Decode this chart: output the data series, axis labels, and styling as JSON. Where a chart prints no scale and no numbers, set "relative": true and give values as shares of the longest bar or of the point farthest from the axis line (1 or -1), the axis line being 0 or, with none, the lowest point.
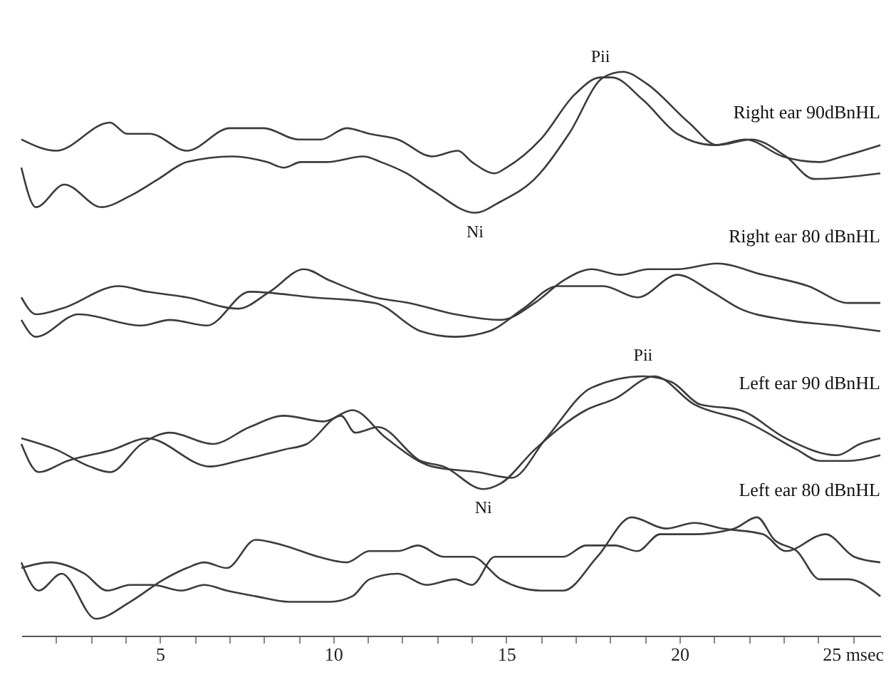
{
  "chart_data": {
    "type": "line",
    "relative": true,
    "grid": false,
    "marker": "none",
    "line_style": "solid",
    "xlim": [
      1,
      25.8
    ],
    "xticks": [
      {
        "value": 2,
        "label": null
      },
      {
        "value": 3,
        "label": null
      },
      {
        "value": 4,
        "label": null
      },
      5,
      {
        "value": 6,
        "label": null
      },
      {
        "value": 7,
        "label": null
      },
      {
        "value": 8,
        "label": null
      },
      {
        "value": 9,
        "label": null
      },
      10,
      {
        "value": 11,
        "label": null
      },
      {
        "value": 12,
        "label": null
      },
      {
        "value": 13,
        "label": null
      },
      {
        "value": 14,
        "label": null
      },
      15,
      {
        "value": 16,
        "label": null
      },
      {
        "value": 17,
        "label": null
      },
      {
        "value": 18,
        "label": null
      },
      {
        "value": 19,
        "label": null
      },
      20,
      {
        "value": 21,
        "label": null
      },
      {
        "value": 22,
        "label": null
      },
      {
        "value": 23,
        "label": null
      },
      {
        "value": 24,
        "label": null
      },
      {
        "value": 25,
        "label": "25 msec"
      }
    ],
    "series": [
      {
        "name": "Right ear 90dBnHL",
        "color": "#3c3c3c",
        "x": [
          1.0,
          2.0,
          3.56,
          4.05,
          4.71,
          5.78,
          7.02,
          7.43,
          8.0,
          8.99,
          9.65,
          10.39,
          11.05,
          11.87,
          12.86,
          13.6,
          14.01,
          14.67,
          15.0,
          15.99,
          16.98,
          17.72,
          18.05,
          18.95,
          19.94,
          21.01,
          21.91,
          22.98,
          24.05,
          24.71,
          25.8
        ],
        "values": [
          0.88,
          0.86,
          0.91,
          0.89,
          0.89,
          0.86,
          0.9,
          0.9,
          0.9,
          0.88,
          0.88,
          0.9,
          0.89,
          0.88,
          0.85,
          0.86,
          0.84,
          0.82,
          0.83,
          0.88,
          0.96,
          0.99,
          0.99,
          0.95,
          0.89,
          0.87,
          0.88,
          0.85,
          0.84,
          0.85,
          0.87
        ]
      },
      {
        "color": "#3c3c3c",
        "x": [
          1.0,
          1.42,
          2.24,
          3.31,
          4.14,
          4.96,
          5.78,
          7.1,
          8.09,
          8.58,
          9.07,
          9.81,
          10.88,
          11.38,
          12.12,
          12.86,
          14.1,
          14.84,
          15.82,
          16.81,
          17.8,
          18.37,
          19.03,
          20.27,
          21.09,
          22.08,
          23.07,
          23.89,
          25.8
        ],
        "values": [
          0.83,
          0.76,
          0.8,
          0.76,
          0.78,
          0.81,
          0.84,
          0.85,
          0.84,
          0.83,
          0.84,
          0.84,
          0.85,
          0.84,
          0.82,
          0.79,
          0.75,
          0.77,
          0.81,
          0.89,
          0.99,
          1.0,
          0.98,
          0.91,
          0.87,
          0.88,
          0.85,
          0.81,
          0.82
        ]
      },
      {
        "name": "Right ear 80 dBnHL",
        "color": "#3c3c3c",
        "x": [
          1.0,
          1.42,
          2.16,
          3.81,
          4.63,
          5.78,
          7.26,
          8.17,
          9.16,
          9.9,
          11.21,
          12.2,
          13.52,
          14.84,
          15.82,
          16.65,
          17.47,
          18.29,
          19.11,
          19.94,
          21.09,
          22.41,
          23.72,
          24.88,
          25.8
        ],
        "values": [
          0.6,
          0.57,
          0.58,
          0.62,
          0.61,
          0.6,
          0.58,
          0.61,
          0.65,
          0.63,
          0.6,
          0.59,
          0.57,
          0.56,
          0.59,
          0.63,
          0.65,
          0.64,
          0.65,
          0.65,
          0.66,
          0.64,
          0.62,
          0.59,
          0.59
        ]
      },
      {
        "color": "#3c3c3c",
        "x": [
          1.0,
          1.42,
          2.65,
          4.47,
          5.29,
          6.36,
          7.59,
          9.4,
          11.21,
          12.53,
          13.52,
          14.51,
          15.49,
          16.48,
          17.8,
          18.79,
          19.94,
          20.93,
          21.75,
          23.07,
          24.55,
          25.8
        ],
        "values": [
          0.56,
          0.53,
          0.57,
          0.55,
          0.56,
          0.55,
          0.61,
          0.6,
          0.59,
          0.54,
          0.53,
          0.54,
          0.58,
          0.62,
          0.62,
          0.6,
          0.64,
          0.61,
          0.58,
          0.56,
          0.55,
          0.54
        ]
      },
      {
        "name": "Left ear 90 dBnHL",
        "color": "#3c3c3c",
        "x": [
          1.0,
          2.0,
          2.98,
          3.56,
          4.47,
          5.29,
          6.52,
          7.59,
          8.58,
          9.73,
          10.56,
          11.54,
          12.86,
          14.18,
          15.16,
          16.15,
          17.47,
          18.95,
          19.77,
          20.6,
          21.75,
          23.07,
          24.55,
          25.21,
          25.8
        ],
        "values": [
          0.35,
          0.33,
          0.3,
          0.29,
          0.34,
          0.36,
          0.34,
          0.37,
          0.39,
          0.38,
          0.4,
          0.35,
          0.3,
          0.29,
          0.28,
          0.35,
          0.44,
          0.46,
          0.45,
          0.41,
          0.4,
          0.35,
          0.32,
          0.34,
          0.35
        ]
      },
      {
        "color": "#3c3c3c",
        "x": [
          1.0,
          1.5,
          2.33,
          3.64,
          4.63,
          6.44,
          7.26,
          8.58,
          9.24,
          10.23,
          10.64,
          11.3,
          12.53,
          13.19,
          14.34,
          14.84,
          15.82,
          17.3,
          18.13,
          19.28,
          20.43,
          21.91,
          23.39,
          24.05,
          24.88,
          25.8
        ],
        "values": [
          0.34,
          0.29,
          0.31,
          0.33,
          0.35,
          0.3,
          0.31,
          0.33,
          0.34,
          0.39,
          0.36,
          0.37,
          0.31,
          0.3,
          0.26,
          0.27,
          0.33,
          0.4,
          0.42,
          0.46,
          0.41,
          0.38,
          0.33,
          0.31,
          0.31,
          0.32
        ]
      },
      {
        "name": "Left ear 80 dBnHL",
        "color": "#3c3c3c",
        "x": [
          1.0,
          1.83,
          2.82,
          3.48,
          4.14,
          4.79,
          5.62,
          6.28,
          6.93,
          7.76,
          8.74,
          9.9,
          10.56,
          11.05,
          11.87,
          12.7,
          13.52,
          14.01,
          14.67,
          15.82,
          16.65,
          17.3,
          18.13,
          18.79,
          19.44,
          20.43,
          21.58,
          22.24,
          22.74,
          23.39,
          24.05,
          24.88,
          25.8
        ],
        "values": [
          0.12,
          0.13,
          0.11,
          0.08,
          0.09,
          0.09,
          0.08,
          0.09,
          0.08,
          0.07,
          0.06,
          0.06,
          0.07,
          0.1,
          0.11,
          0.09,
          0.1,
          0.09,
          0.14,
          0.14,
          0.14,
          0.16,
          0.16,
          0.15,
          0.18,
          0.18,
          0.19,
          0.21,
          0.17,
          0.15,
          0.1,
          0.1,
          0.07
        ]
      },
      {
        "color": "#3c3c3c",
        "x": [
          1.0,
          1.5,
          2.16,
          3.15,
          4.14,
          5.12,
          5.78,
          6.28,
          6.93,
          7.76,
          8.58,
          9.57,
          10.39,
          11.05,
          11.87,
          12.45,
          13.19,
          14.01,
          14.84,
          15.99,
          16.65,
          17.63,
          18.62,
          19.61,
          20.43,
          21.25,
          22.41,
          23.07,
          24.22,
          25.04,
          25.8
        ],
        "values": [
          0.13,
          0.08,
          0.11,
          0.03,
          0.06,
          0.1,
          0.12,
          0.13,
          0.12,
          0.17,
          0.16,
          0.14,
          0.13,
          0.15,
          0.15,
          0.16,
          0.14,
          0.14,
          0.1,
          0.08,
          0.08,
          0.14,
          0.21,
          0.19,
          0.2,
          0.19,
          0.18,
          0.15,
          0.18,
          0.14,
          0.13
        ]
      }
    ],
    "annotations": [
      {
        "text": "Pii",
        "x": 17.72,
        "y": 0.99
      },
      {
        "text": "Ni",
        "x": 14.1,
        "y": 0.75
      },
      {
        "text": "Pii",
        "x": 18.95,
        "y": 0.46
      },
      {
        "text": "Ni",
        "x": 14.34,
        "y": 0.26
      }
    ]
  }
}
